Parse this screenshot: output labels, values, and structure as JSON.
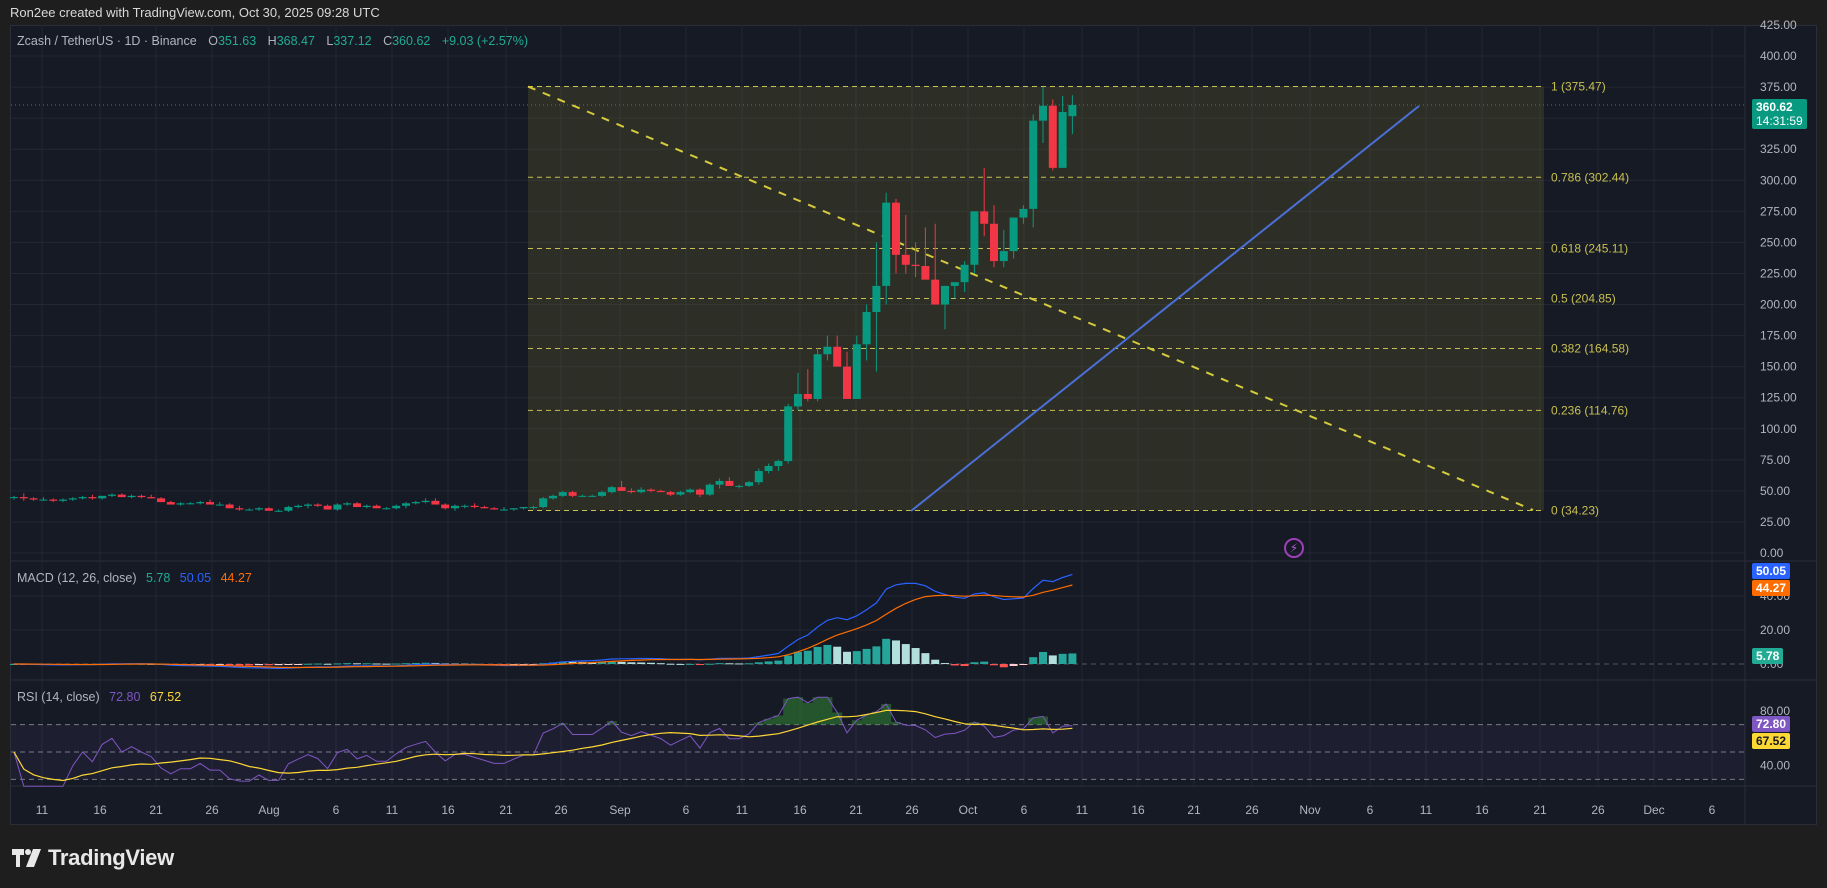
{
  "credit": "Ron2ee created with TradingView.com, Oct 30, 2025 09:28 UTC",
  "header": {
    "symbol": "Zcash / TetherUS · 1D · Binance",
    "open_label": "O",
    "open": "351.63",
    "high_label": "H",
    "high": "368.47",
    "low_label": "L",
    "low": "337.12",
    "close_label": "C",
    "close": "360.62",
    "change": "+9.03 (+2.57%)"
  },
  "price_tag": {
    "value": "360.62",
    "countdown": "14:31:59",
    "color": "#089981"
  },
  "macd": {
    "label": "MACD (12, 26, close)",
    "histogram": "5.78",
    "macd": "50.05",
    "signal": "44.27",
    "colors": {
      "histogram": "#22ab94",
      "macd": "#2962ff",
      "signal": "#ff6d00"
    }
  },
  "rsi": {
    "label": "RSI (14, close)",
    "rsi": "72.80",
    "ma": "67.52",
    "colors": {
      "rsi": "#7e57c2",
      "ma": "#fdd835"
    }
  },
  "brand": {
    "name": "TradingView"
  },
  "icons": {
    "bolt": "⚡"
  },
  "chart_data": {
    "type": "candlestick",
    "title": "Zcash / TetherUS · 1D · Binance",
    "price_axis": [
      "425.00",
      "400.00",
      "375.00",
      "350.00",
      "325.00",
      "300.00",
      "275.00",
      "250.00",
      "225.00",
      "200.00",
      "175.00",
      "150.00",
      "125.00",
      "100.00",
      "75.00",
      "50.00",
      "25.00",
      "0.00"
    ],
    "macd_axis": [
      "40.00",
      "20.00",
      "0.00"
    ],
    "rsi_axis": [
      "80.00",
      "40.00"
    ],
    "time_axis": [
      "11",
      "16",
      "21",
      "26",
      "Aug",
      "6",
      "11",
      "16",
      "21",
      "26",
      "Sep",
      "6",
      "11",
      "16",
      "21",
      "26",
      "Oct",
      "6",
      "11",
      "16",
      "21",
      "26",
      "Nov",
      "6",
      "11",
      "16",
      "21",
      "26",
      "Dec",
      "6"
    ],
    "fib_levels": [
      {
        "ratio": "1",
        "price": "375.47",
        "label": "1 (375.47)"
      },
      {
        "ratio": "0.786",
        "price": "302.44",
        "label": "0.786 (302.44)"
      },
      {
        "ratio": "0.618",
        "price": "245.11",
        "label": "0.618 (245.11)"
      },
      {
        "ratio": "0.5",
        "price": "204.85",
        "label": "0.5 (204.85)"
      },
      {
        "ratio": "0.382",
        "price": "164.58",
        "label": "0.382 (164.58)"
      },
      {
        "ratio": "0.236",
        "price": "114.76",
        "label": "0.236 (114.76)"
      },
      {
        "ratio": "0",
        "price": "34.23",
        "label": "0 (34.23)"
      }
    ],
    "ylim": [
      0,
      425
    ],
    "last_close": 360.62,
    "candles_approx": {
      "note": "Sideways ~35-55 from Jul to late Sep, rally in Oct to ~290, pullback to ~205, then rally to ~375 high",
      "ohlc": [
        [
          45,
          46,
          43,
          45
        ],
        [
          45,
          48,
          42,
          44
        ],
        [
          44,
          45,
          42,
          43
        ],
        [
          43,
          45,
          42,
          43
        ],
        [
          43,
          44,
          41,
          42
        ],
        [
          42,
          44,
          41,
          43
        ],
        [
          43,
          45,
          42,
          44
        ],
        [
          44,
          46,
          43,
          45
        ],
        [
          45,
          47,
          43,
          44
        ],
        [
          44,
          46,
          43,
          46
        ],
        [
          46,
          48,
          45,
          47
        ],
        [
          47,
          48,
          45,
          45
        ],
        [
          45,
          47,
          44,
          46
        ],
        [
          46,
          47,
          44,
          45
        ],
        [
          45,
          47,
          44,
          44
        ],
        [
          44,
          45,
          41,
          41
        ],
        [
          41,
          42,
          39,
          39
        ],
        [
          39,
          41,
          38,
          40
        ],
        [
          40,
          41,
          39,
          40
        ],
        [
          40,
          42,
          39,
          41
        ],
        [
          41,
          43,
          39,
          39
        ],
        [
          39,
          41,
          38,
          39
        ],
        [
          39,
          40,
          36,
          36
        ],
        [
          36,
          38,
          34,
          35
        ],
        [
          35,
          36,
          34,
          35
        ],
        [
          35,
          37,
          34,
          36
        ],
        [
          36,
          37,
          34,
          34
        ],
        [
          34,
          35,
          33,
          34
        ],
        [
          34,
          38,
          33,
          37
        ],
        [
          37,
          39,
          36,
          38
        ],
        [
          38,
          40,
          36,
          39
        ],
        [
          39,
          40,
          37,
          38
        ],
        [
          38,
          39,
          35,
          35
        ],
        [
          35,
          40,
          34,
          39
        ],
        [
          39,
          41,
          38,
          40
        ],
        [
          40,
          41,
          37,
          37
        ],
        [
          37,
          39,
          36,
          38
        ],
        [
          38,
          39,
          36,
          36
        ],
        [
          36,
          37,
          35,
          36
        ],
        [
          36,
          39,
          35,
          38
        ],
        [
          38,
          41,
          36,
          40
        ],
        [
          40,
          42,
          39,
          41
        ],
        [
          41,
          44,
          40,
          42
        ],
        [
          42,
          44,
          39,
          39
        ],
        [
          39,
          40,
          35,
          36
        ],
        [
          36,
          39,
          34,
          38
        ],
        [
          38,
          39,
          36,
          38
        ],
        [
          38,
          40,
          36,
          37
        ],
        [
          37,
          38,
          36,
          36
        ],
        [
          36,
          37,
          35,
          35
        ],
        [
          35,
          37,
          34,
          35
        ],
        [
          35,
          36,
          34,
          36
        ],
        [
          36,
          37,
          35,
          37
        ],
        [
          37,
          38,
          35,
          37
        ],
        [
          37,
          45,
          36,
          44
        ],
        [
          44,
          47,
          43,
          46
        ],
        [
          46,
          50,
          45,
          49
        ],
        [
          49,
          50,
          45,
          46
        ],
        [
          46,
          47,
          45,
          46
        ],
        [
          46,
          47,
          45,
          46
        ],
        [
          46,
          50,
          45,
          49
        ],
        [
          49,
          54,
          48,
          53
        ],
        [
          53,
          58,
          50,
          50
        ],
        [
          50,
          52,
          48,
          49
        ],
        [
          49,
          53,
          48,
          51
        ],
        [
          51,
          52,
          49,
          50
        ],
        [
          50,
          51,
          49,
          49
        ],
        [
          49,
          50,
          46,
          47
        ],
        [
          47,
          50,
          46,
          49
        ],
        [
          49,
          52,
          48,
          51
        ],
        [
          51,
          52,
          45,
          47
        ],
        [
          47,
          56,
          46,
          55
        ],
        [
          55,
          60,
          52,
          58
        ],
        [
          58,
          61,
          54,
          54
        ],
        [
          54,
          55,
          52,
          54
        ],
        [
          54,
          58,
          53,
          57
        ],
        [
          57,
          68,
          55,
          66
        ],
        [
          66,
          72,
          64,
          70
        ],
        [
          70,
          75,
          66,
          74
        ],
        [
          74,
          120,
          72,
          118
        ],
        [
          118,
          145,
          115,
          128
        ],
        [
          128,
          148,
          122,
          124
        ],
        [
          124,
          165,
          122,
          160
        ],
        [
          160,
          175,
          155,
          166
        ],
        [
          166,
          175,
          155,
          150
        ],
        [
          150,
          162,
          124,
          124
        ],
        [
          124,
          175,
          124,
          168
        ],
        [
          168,
          200,
          155,
          194
        ],
        [
          194,
          250,
          146,
          215
        ],
        [
          215,
          290,
          200,
          282
        ],
        [
          282,
          285,
          225,
          240
        ],
        [
          240,
          272,
          225,
          232
        ],
        [
          232,
          250,
          222,
          231
        ],
        [
          231,
          262,
          230,
          220
        ],
        [
          220,
          265,
          210,
          200
        ],
        [
          200,
          215,
          180,
          215
        ],
        [
          215,
          217,
          205,
          218
        ],
        [
          218,
          235,
          210,
          232
        ],
        [
          232,
          275,
          225,
          275
        ],
        [
          275,
          310,
          255,
          265
        ],
        [
          265,
          280,
          230,
          235
        ],
        [
          235,
          260,
          230,
          243
        ],
        [
          243,
          265,
          237,
          270
        ],
        [
          270,
          280,
          265,
          277
        ],
        [
          277,
          353,
          262,
          348
        ],
        [
          348,
          375,
          330,
          360
        ],
        [
          360,
          365,
          308,
          310
        ],
        [
          310,
          368,
          313,
          355
        ],
        [
          351.63,
          368.47,
          337.12,
          360.62
        ]
      ]
    },
    "trendline": {
      "color": "#4a6fd6",
      "from_price": 34,
      "to_price": 360
    },
    "macd_series": {
      "macd_last": 50.05,
      "signal_last": 44.27,
      "hist_last": 5.78
    },
    "rsi_series": {
      "rsi_last": 72.8,
      "ma_last": 67.52,
      "upper_band": 70,
      "middle": 50,
      "lower_band": 30
    }
  }
}
